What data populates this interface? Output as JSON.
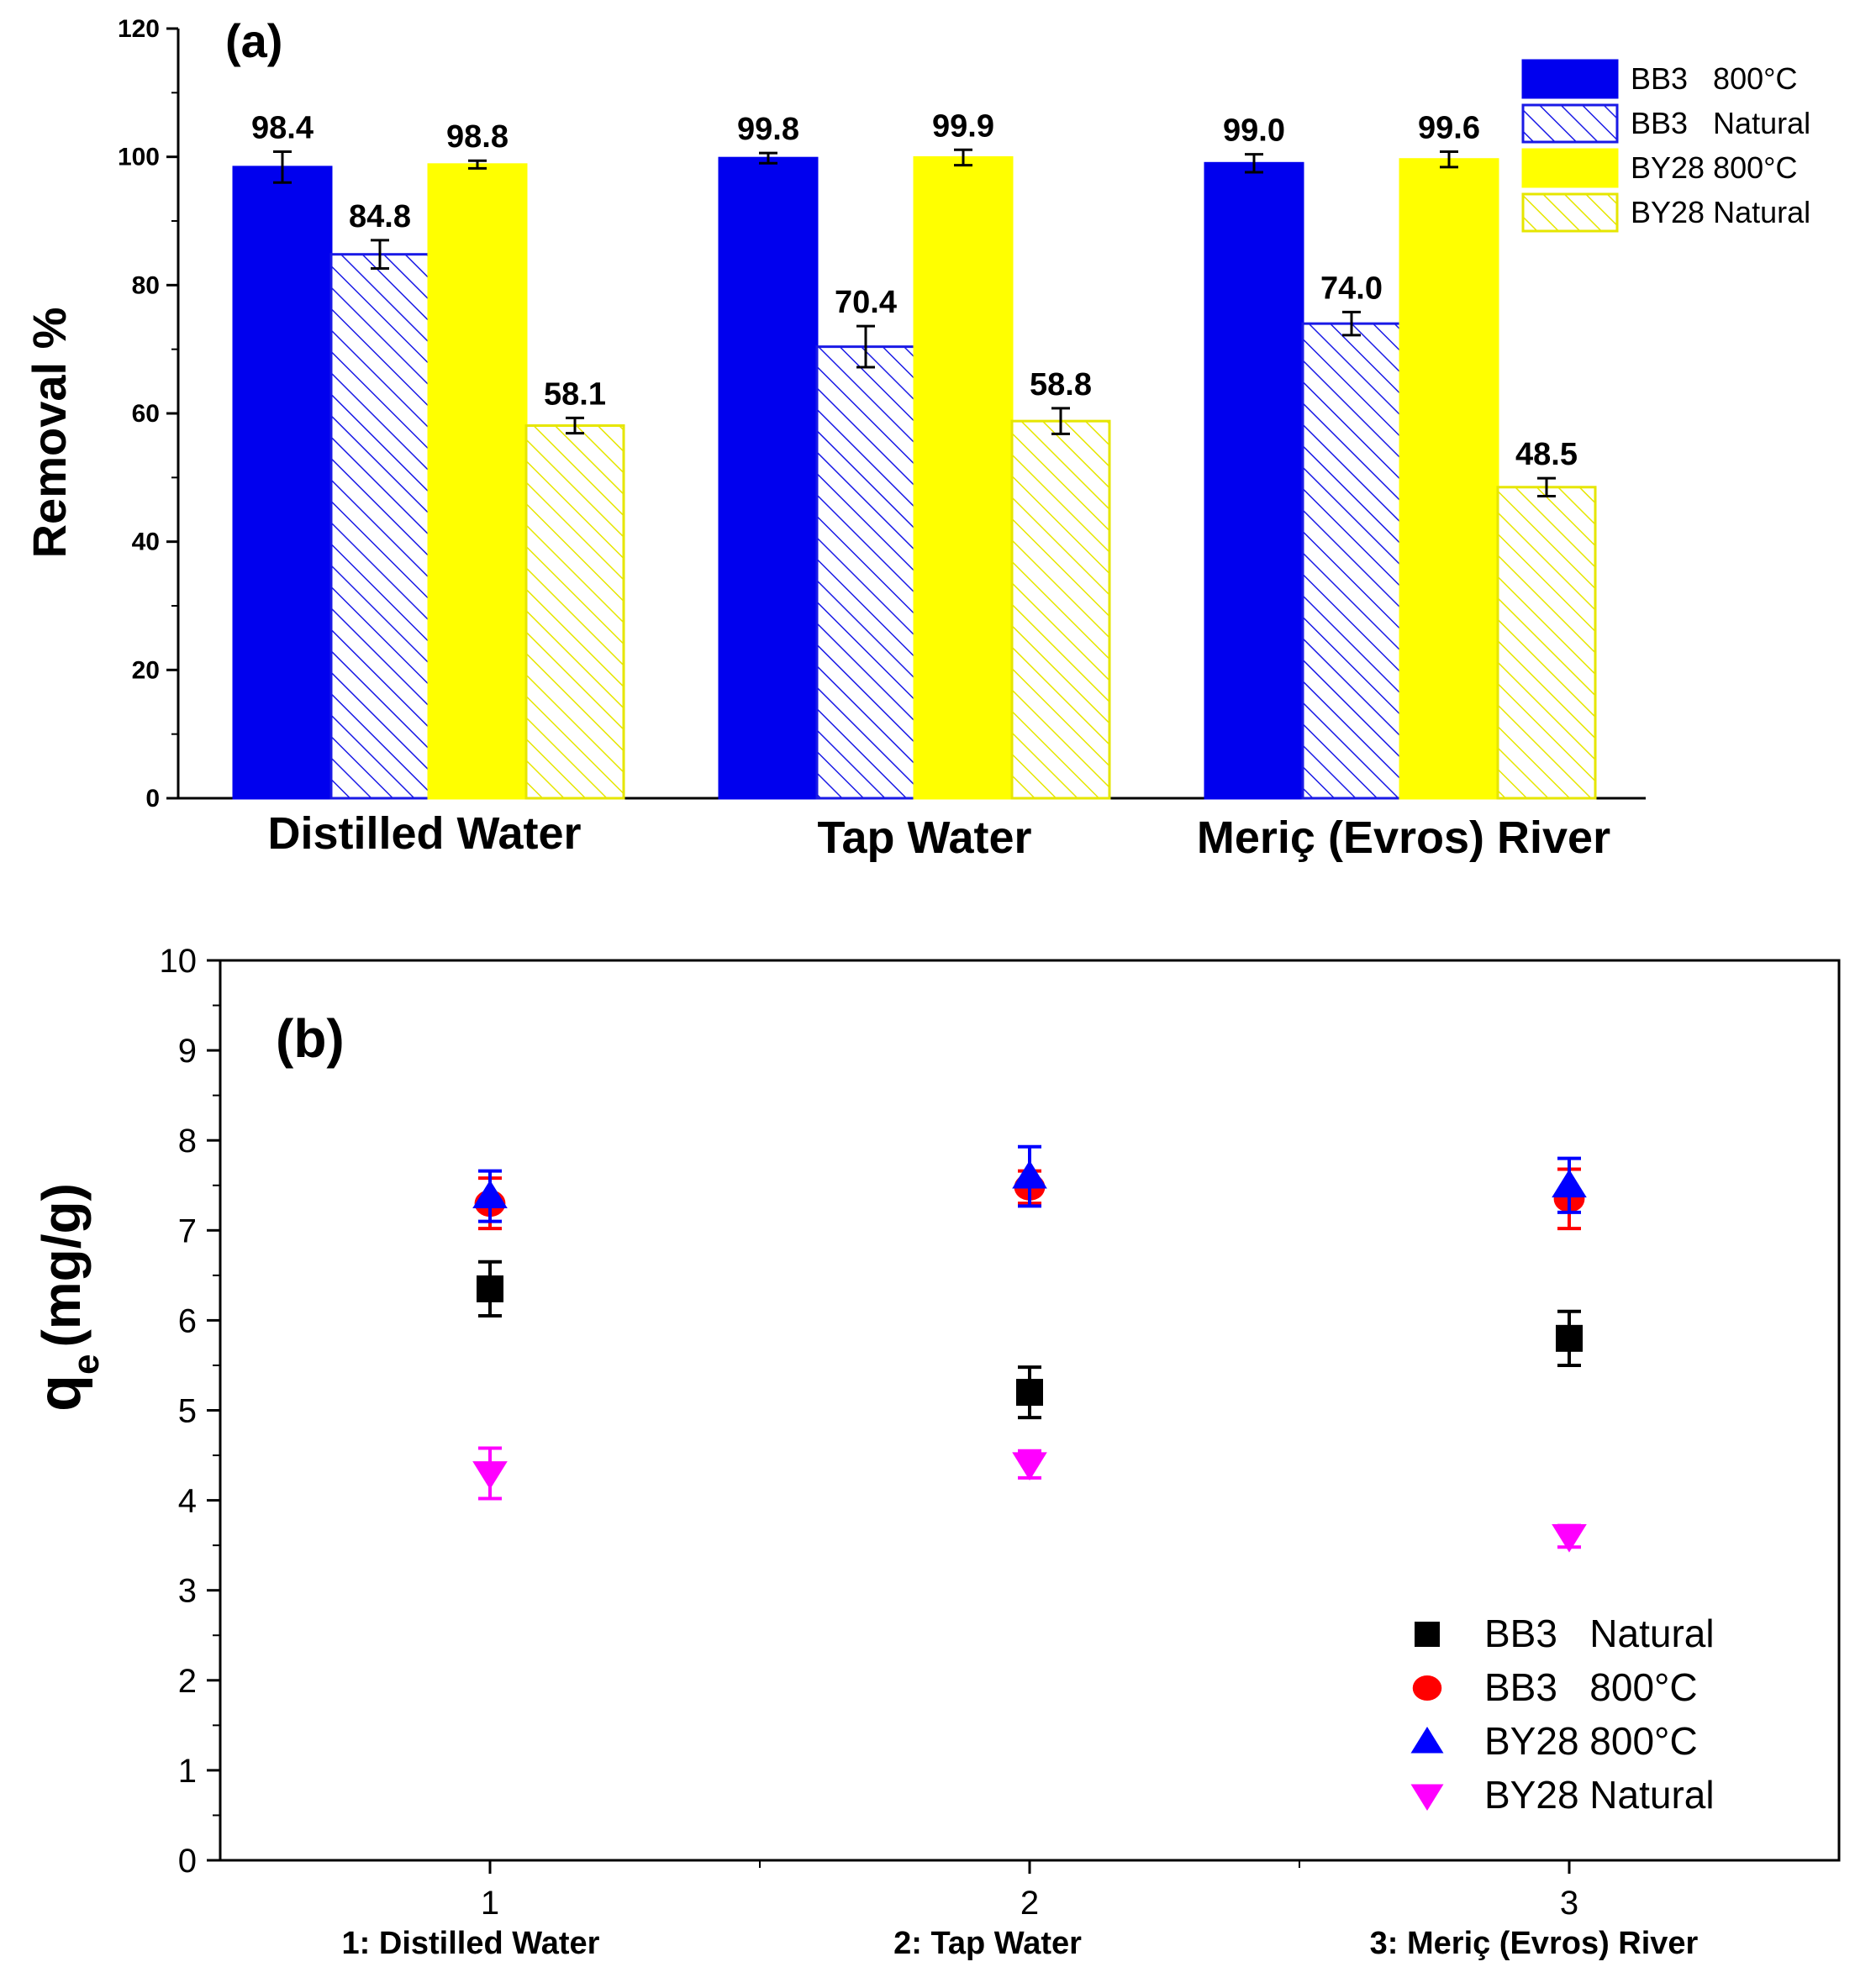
{
  "chart_data": [
    {
      "panel": "(a)",
      "type": "bar",
      "ylabel": "Removal %",
      "ylim": [
        0,
        120
      ],
      "yticks": [
        0,
        20,
        40,
        60,
        80,
        100,
        120
      ],
      "categories": [
        "Distilled Water",
        "Tap Water",
        "Meriç (Evros) River"
      ],
      "series": [
        {
          "name": "BB3   800°C",
          "color": "#0000ee",
          "pattern": "solid",
          "values": [
            98.4,
            99.8,
            99.0
          ],
          "errors": [
            2.4,
            0.8,
            1.4
          ],
          "labels": [
            "98.4",
            "99.8",
            "99.0"
          ]
        },
        {
          "name": "BB3   Natural",
          "color": "#1a1ae6",
          "pattern": "hatch",
          "values": [
            84.8,
            70.4,
            74.0
          ],
          "errors": [
            2.2,
            3.2,
            1.8
          ],
          "labels": [
            "84.8",
            "70.4",
            "74.0"
          ]
        },
        {
          "name": "BY28 800°C",
          "color": "#ffff00",
          "pattern": "solid",
          "values": [
            98.8,
            99.9,
            99.6
          ],
          "errors": [
            0.6,
            1.2,
            1.2
          ],
          "labels": [
            "98.8",
            "99.9",
            "99.6"
          ]
        },
        {
          "name": "BY28 Natural",
          "color": "#e6e600",
          "pattern": "hatch",
          "values": [
            58.1,
            58.8,
            48.5
          ],
          "errors": [
            1.2,
            2.0,
            1.4
          ],
          "labels": [
            "58.1",
            "58.8",
            "48.5"
          ]
        }
      ],
      "legend_position": "top-right"
    },
    {
      "panel": "(b)",
      "type": "scatter",
      "ylabel_main": "q",
      "ylabel_sub": "e",
      "ylabel_unit": "(mg/g)",
      "ylim": [
        0,
        10
      ],
      "yticks": [
        0,
        1,
        2,
        3,
        4,
        5,
        6,
        7,
        8,
        9,
        10
      ],
      "xlim": [
        0.5,
        3.5
      ],
      "xticks": [
        1,
        2,
        3
      ],
      "xtick_labels": [
        "1",
        "2",
        "3"
      ],
      "xcategory_labels": [
        "1: Distilled Water",
        "2: Tap Water",
        "3: Meriç (Evros) River"
      ],
      "series": [
        {
          "name": "BB3   Natural",
          "marker": "square",
          "color": "#000000",
          "x": [
            1,
            2,
            3
          ],
          "y": [
            6.35,
            5.2,
            5.8
          ],
          "errors": [
            0.3,
            0.28,
            0.3
          ]
        },
        {
          "name": "BB3   800°C",
          "marker": "circle",
          "color": "#ff0000",
          "x": [
            1,
            2,
            3
          ],
          "y": [
            7.3,
            7.48,
            7.35
          ],
          "errors": [
            0.28,
            0.18,
            0.33
          ]
        },
        {
          "name": "BY28 800°C",
          "marker": "triangle-up",
          "color": "#0000ff",
          "x": [
            1,
            2,
            3
          ],
          "y": [
            7.38,
            7.6,
            7.5
          ],
          "errors": [
            0.28,
            0.33,
            0.3
          ]
        },
        {
          "name": "BY28 Natural",
          "marker": "triangle-down",
          "color": "#ff00ff",
          "x": [
            1,
            2,
            3
          ],
          "y": [
            4.3,
            4.4,
            3.6
          ],
          "errors": [
            0.28,
            0.15,
            0.12
          ]
        }
      ],
      "legend_position": "bottom-right"
    }
  ]
}
